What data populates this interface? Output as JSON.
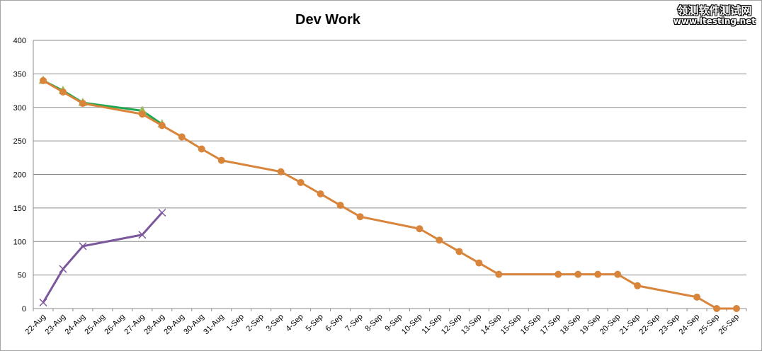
{
  "watermark": {
    "line1": "领测软件测试网",
    "line2": "www.ltesting.net"
  },
  "chart_data": {
    "type": "line",
    "title": "Dev Work",
    "xlabel": "",
    "ylabel": "",
    "ylim": [
      0,
      400
    ],
    "yticks": [
      0,
      50,
      100,
      150,
      200,
      250,
      300,
      350,
      400
    ],
    "grid": true,
    "legend": "none",
    "categories": [
      "22-Aug",
      "23-Aug",
      "24-Aug",
      "25-Aug",
      "26-Aug",
      "27-Aug",
      "28-Aug",
      "29-Aug",
      "30-Aug",
      "31-Aug",
      "1-Sep",
      "2-Sep",
      "3-Sep",
      "4-Sep",
      "5-Sep",
      "6-Sep",
      "7-Sep",
      "8-Sep",
      "9-Sep",
      "10-Sep",
      "11-Sep",
      "12-Sep",
      "13-Sep",
      "14-Sep",
      "15-Sep",
      "16-Sep",
      "17-Sep",
      "18-Sep",
      "19-Sep",
      "20-Sep",
      "21-Sep",
      "22-Sep",
      "23-Sep",
      "24-Sep",
      "25-Sep",
      "26-Sep"
    ],
    "series": [
      {
        "color": "#1fa84f",
        "marker": "triangle",
        "marker_color": "#9bbb59",
        "points": [
          {
            "x": "22-Aug",
            "y": 340
          },
          {
            "x": "23-Aug",
            "y": 325
          },
          {
            "x": "24-Aug",
            "y": 307
          },
          {
            "x": "27-Aug",
            "y": 295
          },
          {
            "x": "28-Aug",
            "y": 275
          }
        ]
      },
      {
        "color": "#d8843a",
        "marker": "circle",
        "marker_color": "#d8843a",
        "points": [
          {
            "x": "22-Aug",
            "y": 340
          },
          {
            "x": "23-Aug",
            "y": 323
          },
          {
            "x": "24-Aug",
            "y": 306
          },
          {
            "x": "27-Aug",
            "y": 290
          },
          {
            "x": "28-Aug",
            "y": 273
          },
          {
            "x": "29-Aug",
            "y": 256
          },
          {
            "x": "30-Aug",
            "y": 238
          },
          {
            "x": "31-Aug",
            "y": 221
          },
          {
            "x": "3-Sep",
            "y": 204
          },
          {
            "x": "4-Sep",
            "y": 188
          },
          {
            "x": "5-Sep",
            "y": 171
          },
          {
            "x": "6-Sep",
            "y": 154
          },
          {
            "x": "7-Sep",
            "y": 137
          },
          {
            "x": "10-Sep",
            "y": 119
          },
          {
            "x": "11-Sep",
            "y": 102
          },
          {
            "x": "12-Sep",
            "y": 85
          },
          {
            "x": "13-Sep",
            "y": 68
          },
          {
            "x": "14-Sep",
            "y": 51
          },
          {
            "x": "17-Sep",
            "y": 51
          },
          {
            "x": "18-Sep",
            "y": 51
          },
          {
            "x": "19-Sep",
            "y": 51
          },
          {
            "x": "20-Sep",
            "y": 51
          },
          {
            "x": "21-Sep",
            "y": 34
          },
          {
            "x": "24-Sep",
            "y": 17
          },
          {
            "x": "25-Sep",
            "y": 0
          },
          {
            "x": "26-Sep",
            "y": 0
          }
        ]
      },
      {
        "color": "#7b579b",
        "marker": "x",
        "marker_color": "#7b579b",
        "points": [
          {
            "x": "22-Aug",
            "y": 9
          },
          {
            "x": "23-Aug",
            "y": 59
          },
          {
            "x": "24-Aug",
            "y": 93
          },
          {
            "x": "27-Aug",
            "y": 110
          },
          {
            "x": "28-Aug",
            "y": 143
          }
        ]
      }
    ]
  }
}
